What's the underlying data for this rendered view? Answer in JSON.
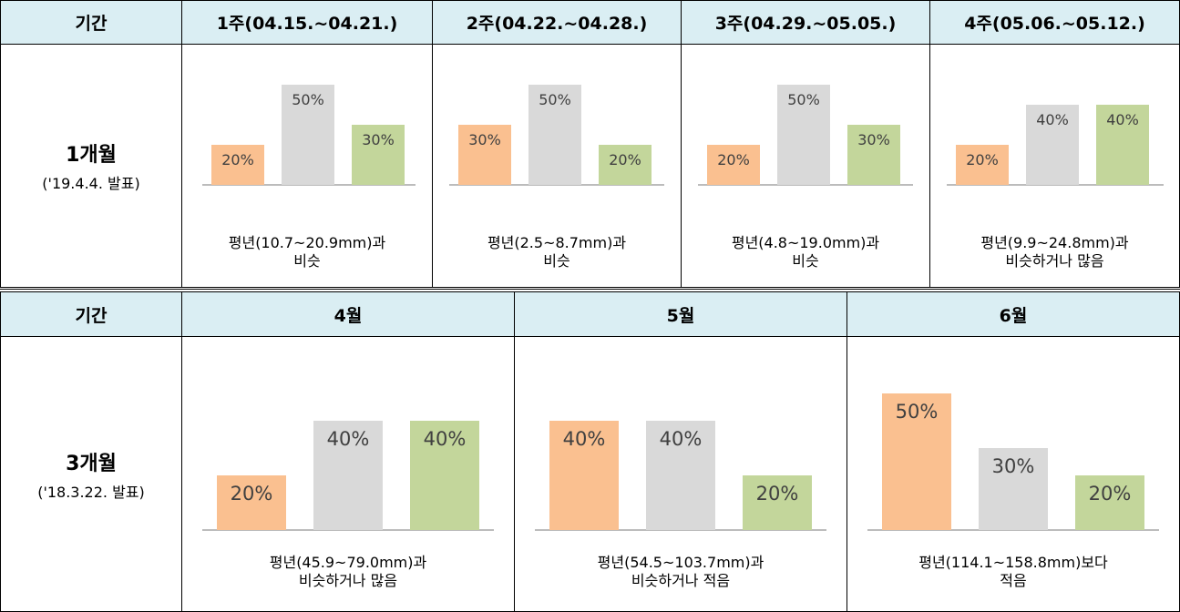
{
  "colors": {
    "header_bg": "#daeef3",
    "bar_below": "#fac090",
    "bar_normal": "#d9d9d9",
    "bar_above": "#c3d69b",
    "axis": "#a6a6a6"
  },
  "top": {
    "period_label": "기간",
    "headers": [
      "1주(04.15.~04.21.)",
      "2주(04.22.~04.28.)",
      "3주(04.29.~05.05.)",
      "4주(05.06.~05.12.)"
    ],
    "row_label": "1개월",
    "row_sub": "('19.4.4. 발표)",
    "captions": [
      [
        "평년(10.7~20.9mm)과",
        "비슷"
      ],
      [
        "평년(2.5~8.7mm)과",
        "비슷"
      ],
      [
        "평년(4.8~19.0mm)과",
        "비슷"
      ],
      [
        "평년(9.9~24.8mm)과",
        "비슷하거나  많음"
      ]
    ]
  },
  "bottom": {
    "period_label": "기간",
    "headers": [
      "4월",
      "5월",
      "6월"
    ],
    "row_label": "3개월",
    "row_sub": "('18.3.22. 발표)",
    "captions": [
      [
        "평년(45.9~79.0mm)과",
        "비슷하거나  많음"
      ],
      [
        "평년(54.5~103.7mm)과",
        "비슷하거나  적음"
      ],
      [
        "평년(114.1~158.8mm)보다",
        "적음"
      ]
    ]
  },
  "chart_data": [
    {
      "type": "bar",
      "period": "1주(04.15.~04.21.)",
      "values": [
        20,
        50,
        30
      ],
      "labels": [
        "20%",
        "50%",
        "30%"
      ]
    },
    {
      "type": "bar",
      "period": "2주(04.22.~04.28.)",
      "values": [
        30,
        50,
        20
      ],
      "labels": [
        "30%",
        "50%",
        "20%"
      ]
    },
    {
      "type": "bar",
      "period": "3주(04.29.~05.05.)",
      "values": [
        20,
        50,
        30
      ],
      "labels": [
        "20%",
        "50%",
        "30%"
      ]
    },
    {
      "type": "bar",
      "period": "4주(05.06.~05.12.)",
      "values": [
        20,
        40,
        40
      ],
      "labels": [
        "20%",
        "40%",
        "40%"
      ]
    },
    {
      "type": "bar",
      "period": "4월",
      "values": [
        20,
        40,
        40
      ],
      "labels": [
        "20%",
        "40%",
        "40%"
      ]
    },
    {
      "type": "bar",
      "period": "5월",
      "values": [
        40,
        40,
        20
      ],
      "labels": [
        "40%",
        "40%",
        "20%"
      ]
    },
    {
      "type": "bar",
      "period": "6월",
      "values": [
        50,
        30,
        20
      ],
      "labels": [
        "50%",
        "30%",
        "20%"
      ]
    }
  ]
}
